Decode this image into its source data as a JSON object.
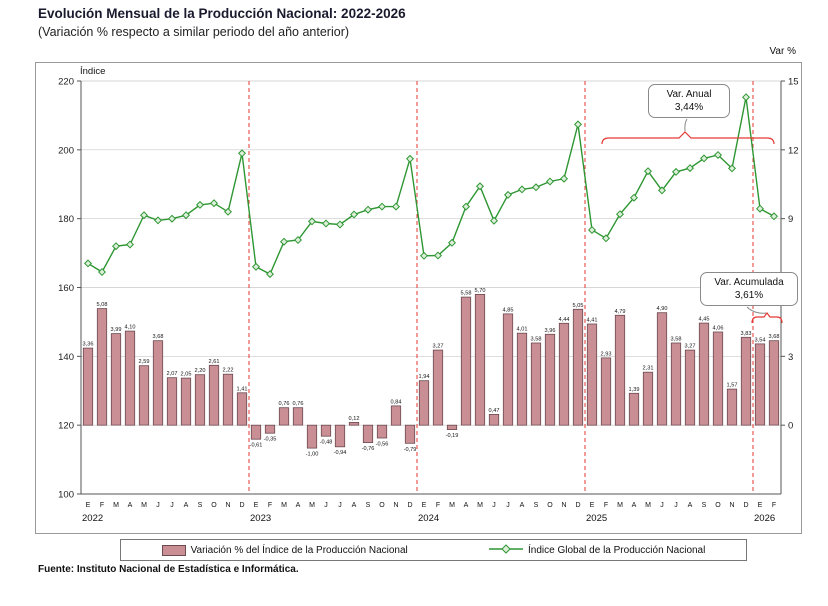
{
  "title": "Evolución Mensual de la Producción Nacional: 2022-2026",
  "subtitle": "(Variación % respecto a similar periodo del año anterior)",
  "source": "Fuente: Instituto Nacional de Estadística e Informática.",
  "annotations": {
    "anual": {
      "title": "Var. Anual",
      "value": "3,44%"
    },
    "acumulada": {
      "title": "Var. Acumulada",
      "value": "3,61%"
    }
  },
  "colors": {
    "bar_fill": "#c98f94",
    "bar_stroke": "#6b4a50",
    "line": "#2e9632",
    "marker_fill": "#ddefdb",
    "divider": "#e53935",
    "grid": "#c9c9c9",
    "axis": "#555555"
  },
  "chart_data": {
    "type": "combo-bar-line",
    "title": "Evolución Mensual de la Producción Nacional: 2022-2026",
    "x_months": [
      "E",
      "F",
      "M",
      "A",
      "M",
      "J",
      "J",
      "A",
      "S",
      "O",
      "N",
      "D",
      "E",
      "F",
      "M",
      "A",
      "M",
      "J",
      "J",
      "A",
      "S",
      "O",
      "N",
      "D",
      "E",
      "F",
      "M",
      "A",
      "M",
      "J",
      "J",
      "A",
      "S",
      "O",
      "N",
      "D",
      "E",
      "F",
      "M",
      "A",
      "M",
      "J",
      "J",
      "A",
      "S",
      "O",
      "N",
      "D",
      "E",
      "F"
    ],
    "year_groups": [
      {
        "label": "2022",
        "start_index": 0
      },
      {
        "label": "2023",
        "start_index": 12
      },
      {
        "label": "2024",
        "start_index": 24
      },
      {
        "label": "2025",
        "start_index": 36
      },
      {
        "label": "2026",
        "start_index": 48
      }
    ],
    "year_dividers_at": [
      12,
      24,
      36,
      48
    ],
    "left_axis": {
      "label": "Índice",
      "min": 100,
      "max": 220,
      "ticks": [
        220,
        200,
        180,
        160,
        140,
        120,
        100
      ]
    },
    "right_axis": {
      "label": "Var %",
      "ticks": [
        15,
        12,
        9,
        6,
        3,
        0
      ],
      "zero_at_left_value": 120,
      "left_units_per_unit": 6.6667
    },
    "series": [
      {
        "name": "Variación % del Índice de la Producción Nacional",
        "type": "bar",
        "axis": "right",
        "values": [
          3.36,
          5.08,
          3.99,
          4.1,
          2.59,
          3.68,
          2.07,
          2.05,
          2.2,
          2.61,
          2.22,
          1.41,
          -0.61,
          -0.35,
          0.76,
          0.76,
          -1.0,
          -0.48,
          -0.94,
          0.12,
          -0.76,
          -0.56,
          0.84,
          -0.79,
          1.94,
          3.27,
          -0.19,
          5.58,
          5.7,
          0.47,
          4.85,
          4.01,
          3.58,
          3.96,
          4.44,
          5.05,
          4.41,
          2.93,
          4.79,
          1.39,
          2.31,
          4.9,
          3.58,
          3.27,
          4.45,
          4.06,
          1.57,
          3.83,
          3.54,
          3.68
        ]
      },
      {
        "name": "Índice Global de la Producción Nacional",
        "type": "line",
        "axis": "left",
        "values": [
          167.0,
          164.5,
          172.0,
          172.5,
          181.0,
          179.5,
          180.0,
          181.0,
          184.0,
          184.5,
          182.0,
          199.0,
          166.0,
          163.9,
          173.3,
          173.8,
          179.2,
          178.6,
          178.3,
          181.2,
          182.6,
          183.5,
          183.5,
          197.4,
          169.2,
          169.3,
          173.0,
          183.5,
          189.4,
          179.4,
          186.9,
          188.5,
          189.1,
          190.8,
          191.6,
          207.4,
          176.7,
          174.3,
          181.3,
          186.1,
          193.8,
          188.2,
          193.6,
          194.7,
          197.5,
          198.5,
          194.6,
          215.3,
          182.9,
          180.7
        ]
      }
    ]
  }
}
